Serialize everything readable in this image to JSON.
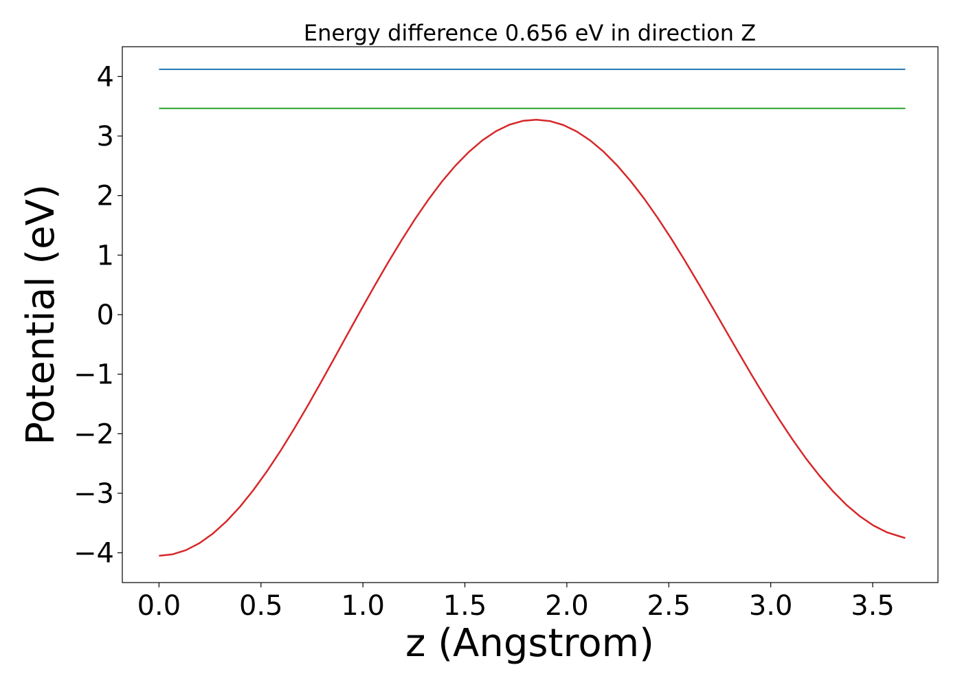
{
  "chart_data": {
    "type": "line",
    "title": "Energy difference 0.656 eV in direction Z",
    "xlabel": "z (Angstrom)",
    "ylabel": "Potential (eV)",
    "xlim": [
      -0.18,
      3.82
    ],
    "ylim": [
      -4.5,
      4.5
    ],
    "xticks": [
      0.0,
      0.5,
      1.0,
      1.5,
      2.0,
      2.5,
      3.0,
      3.5
    ],
    "xtick_labels": [
      "0.0",
      "0.5",
      "1.0",
      "1.5",
      "2.0",
      "2.5",
      "3.0",
      "3.5"
    ],
    "yticks": [
      4,
      3,
      2,
      1,
      0,
      -1,
      -2,
      -3,
      -4
    ],
    "ytick_labels": [
      "4",
      "3",
      "2",
      "1",
      "0",
      "−1",
      "−2",
      "−3",
      "−4"
    ],
    "grid": false,
    "legend": "none",
    "series": [
      {
        "color": "#d62728",
        "style": "line",
        "x": [
          0.0,
          0.0661,
          0.1322,
          0.1983,
          0.2644,
          0.3305,
          0.3966,
          0.4627,
          0.5288,
          0.5949,
          0.661,
          0.7271,
          0.7932,
          0.8593,
          0.9254,
          0.9915,
          1.0576,
          1.1237,
          1.1898,
          1.2559,
          1.322,
          1.3881,
          1.4542,
          1.5203,
          1.5864,
          1.6525,
          1.7186,
          1.7847,
          1.8508,
          1.9169,
          1.983,
          2.0491,
          2.1152,
          2.1813,
          2.2474,
          2.3135,
          2.3796,
          2.4457,
          2.5118,
          2.5779,
          2.644,
          2.7101,
          2.7762,
          2.8423,
          2.9084,
          2.9745,
          3.0406,
          3.1067,
          3.1728,
          3.2389,
          3.305,
          3.3711,
          3.4372,
          3.5033,
          3.5694,
          3.6355,
          3.66
        ],
        "y": [
          -4.05,
          -4.026,
          -3.955,
          -3.838,
          -3.676,
          -3.472,
          -3.228,
          -2.947,
          -2.634,
          -2.292,
          -1.926,
          -1.541,
          -1.142,
          -0.734,
          -0.323,
          0.085,
          0.487,
          0.878,
          1.252,
          1.607,
          1.936,
          2.237,
          2.504,
          2.736,
          2.929,
          3.081,
          3.19,
          3.255,
          3.275,
          3.252,
          3.185,
          3.075,
          2.924,
          2.733,
          2.504,
          2.241,
          1.946,
          1.624,
          1.278,
          0.913,
          0.533,
          0.145,
          -0.248,
          -0.639,
          -1.023,
          -1.397,
          -1.756,
          -2.097,
          -2.415,
          -2.706,
          -2.967,
          -3.195,
          -3.387,
          -3.541,
          -3.655,
          -3.727,
          -3.752
        ]
      },
      {
        "color": "#1f77b4",
        "style": "hline",
        "x": [
          0.0,
          3.66
        ],
        "y": [
          4.12,
          4.12
        ]
      },
      {
        "color": "#2ca02c",
        "style": "hline",
        "x": [
          0.0,
          3.66
        ],
        "y": [
          3.464,
          3.464
        ]
      }
    ]
  }
}
